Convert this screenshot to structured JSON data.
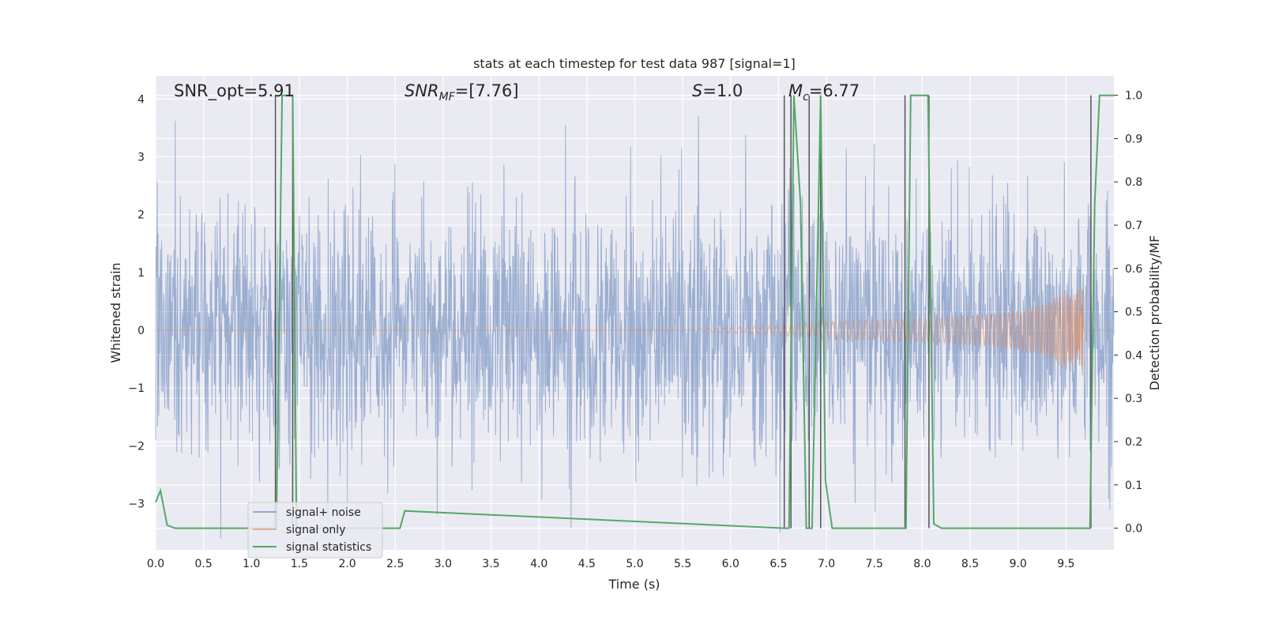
{
  "chart_data": {
    "type": "line",
    "title": "stats at each timestep for test data 987 [signal=1]",
    "xlabel": "Time (s)",
    "ylabel": "Whitened strain",
    "ylabel_right": "Detection probability/MF",
    "xlim": [
      0,
      10
    ],
    "ylim": [
      -3.8,
      4.4
    ],
    "ylim_right": [
      -0.05,
      1.045
    ],
    "xticks": [
      "0.0",
      "0.5",
      "1.0",
      "1.5",
      "2.0",
      "2.5",
      "3.0",
      "3.5",
      "4.0",
      "4.5",
      "5.0",
      "5.5",
      "6.0",
      "6.5",
      "7.0",
      "7.5",
      "8.0",
      "8.5",
      "9.0",
      "9.5"
    ],
    "yticks": [
      "−3",
      "−2",
      "−1",
      "0",
      "1",
      "2",
      "3",
      "4"
    ],
    "yticks_right": [
      "0.0",
      "0.1",
      "0.2",
      "0.3",
      "0.4",
      "0.5",
      "0.6",
      "0.7",
      "0.8",
      "0.9",
      "1.0"
    ],
    "grid": true,
    "legend_position": "lower-left",
    "annotations": {
      "snr_opt": "SNR_opt=5.91",
      "snr_mf": "SNR_MF=[7.76]",
      "s": "S=1.0",
      "mc": "M_c=6.77"
    },
    "series": [
      {
        "name": "signal+ noise",
        "color": "#4c72b0",
        "description": "whitened strain noise, approx. Gaussian std ~1, peaks to ~3.6"
      },
      {
        "name": "signal only",
        "color": "#dd8452",
        "description": "chirp signal, amplitude grows from 0 near 5.5s to ~0.7 at 9.65s"
      },
      {
        "name": "signal statistics",
        "color": "#55a868",
        "x": [
          0.0,
          0.05,
          0.12,
          0.2,
          1.22,
          1.26,
          1.32,
          1.43,
          1.47,
          2.5,
          2.55,
          2.6,
          6.56,
          6.61,
          6.66,
          6.73,
          6.79,
          6.85,
          6.94,
          6.99,
          7.06,
          7.83,
          7.88,
          8.06,
          8.12,
          8.2,
          9.75,
          9.8,
          9.85,
          10.0
        ],
        "y": [
          0.06,
          0.087,
          0.007,
          0.0,
          0.0,
          0.0,
          1.0,
          1.0,
          0.0,
          0.0,
          0.0,
          0.04,
          0.0,
          0.0,
          1.0,
          0.75,
          0.0,
          0.0,
          1.0,
          0.11,
          0.0,
          0.0,
          1.0,
          1.0,
          0.01,
          0.0,
          0.0,
          0.75,
          1.0,
          1.0
        ]
      }
    ],
    "vlines_x": [
      1.25,
      1.43,
      6.56,
      6.63,
      6.82,
      6.94,
      7.82,
      8.07,
      9.76
    ]
  },
  "legend": {
    "item1": "signal+ noise",
    "item2": "signal only",
    "item3": "signal statistics"
  },
  "colors": {
    "background": "#eaeaf2",
    "grid": "#ffffff",
    "noise": "#4c72b0",
    "signal": "#dd8452",
    "stats": "#55a868",
    "vline": "#555555"
  }
}
